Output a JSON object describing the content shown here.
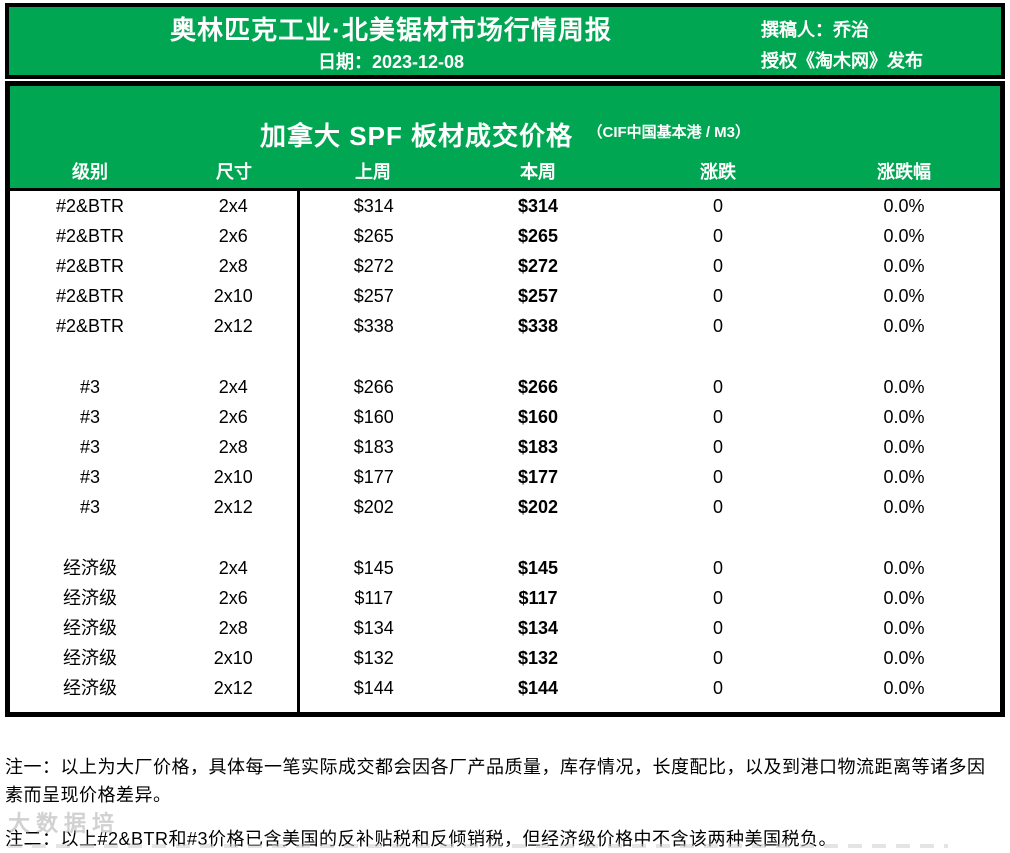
{
  "colors": {
    "green": "#00A651",
    "border": "#000000",
    "watermark_gray": "#9a9a9a"
  },
  "banner": {
    "title": "奥林匹克工业·北美锯材市场行情周报",
    "date": "日期：2023-12-08",
    "author": "撰稿人：乔治",
    "license": "授权《淘木网》发布"
  },
  "table": {
    "title": "加拿大 SPF 板材成交价格",
    "title_note": "（CIF中国基本港 / M3）",
    "columns": [
      "级别",
      "尺寸",
      "上周",
      "本周",
      "涨跌",
      "涨跌幅"
    ],
    "rows": [
      {
        "grade": "#2&BTR",
        "size": "2x4",
        "last_week": "$314",
        "this_week": "$314",
        "change": "0",
        "change_pct": "0.0%"
      },
      {
        "grade": "#2&BTR",
        "size": "2x6",
        "last_week": "$265",
        "this_week": "$265",
        "change": "0",
        "change_pct": "0.0%"
      },
      {
        "grade": "#2&BTR",
        "size": "2x8",
        "last_week": "$272",
        "this_week": "$272",
        "change": "0",
        "change_pct": "0.0%"
      },
      {
        "grade": "#2&BTR",
        "size": "2x10",
        "last_week": "$257",
        "this_week": "$257",
        "change": "0",
        "change_pct": "0.0%"
      },
      {
        "grade": "#2&BTR",
        "size": "2x12",
        "last_week": "$338",
        "this_week": "$338",
        "change": "0",
        "change_pct": "0.0%"
      },
      {
        "grade": "#3",
        "size": "2x4",
        "last_week": "$266",
        "this_week": "$266",
        "change": "0",
        "change_pct": "0.0%",
        "spacer_before": true
      },
      {
        "grade": "#3",
        "size": "2x6",
        "last_week": "$160",
        "this_week": "$160",
        "change": "0",
        "change_pct": "0.0%"
      },
      {
        "grade": "#3",
        "size": "2x8",
        "last_week": "$183",
        "this_week": "$183",
        "change": "0",
        "change_pct": "0.0%"
      },
      {
        "grade": "#3",
        "size": "2x10",
        "last_week": "$177",
        "this_week": "$177",
        "change": "0",
        "change_pct": "0.0%"
      },
      {
        "grade": "#3",
        "size": "2x12",
        "last_week": "$202",
        "this_week": "$202",
        "change": "0",
        "change_pct": "0.0%"
      },
      {
        "grade": "经济级",
        "size": "2x4",
        "last_week": "$145",
        "this_week": "$145",
        "change": "0",
        "change_pct": "0.0%",
        "spacer_before": true
      },
      {
        "grade": "经济级",
        "size": "2x6",
        "last_week": "$117",
        "this_week": "$117",
        "change": "0",
        "change_pct": "0.0%"
      },
      {
        "grade": "经济级",
        "size": "2x8",
        "last_week": "$134",
        "this_week": "$134",
        "change": "0",
        "change_pct": "0.0%"
      },
      {
        "grade": "经济级",
        "size": "2x10",
        "last_week": "$132",
        "this_week": "$132",
        "change": "0",
        "change_pct": "0.0%"
      },
      {
        "grade": "经济级",
        "size": "2x12",
        "last_week": "$144",
        "this_week": "$144",
        "change": "0",
        "change_pct": "0.0%"
      }
    ]
  },
  "notes": [
    "注一：以上为大厂价格，具体每一笔实际成交都会因各厂产品质量，库存情况，长度配比，以及到港口物流距离等诸多因素而呈现价格差异。",
    "注二：以上#2&BTR和#3价格已含美国的反补贴税和反倾销税，但经济级价格中不含该两种美国税负。"
  ],
  "watermark": "大数据培"
}
